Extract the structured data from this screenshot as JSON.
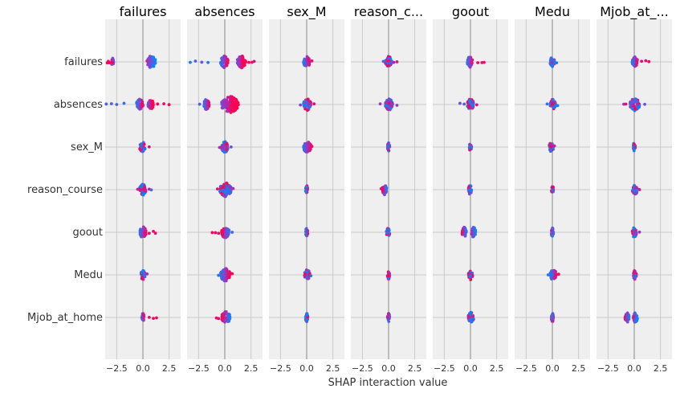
{
  "chart_data": {
    "type": "scatter",
    "subtype": "shap-interaction-summary (beeswarm matrix)",
    "title": "",
    "xlabel": "SHAP interaction value",
    "ylabel": "",
    "xlim": [
      -3.6,
      3.6
    ],
    "xticks": [
      -2.5,
      0.0,
      2.5
    ],
    "xtick_labels": [
      "−2.5",
      "0.0",
      "2.5"
    ],
    "grid": true,
    "features": [
      "failures",
      "absences",
      "sex_M",
      "reason_course",
      "goout",
      "Medu",
      "Mjob_at_home"
    ],
    "panel_titles": [
      "failures",
      "absences",
      "sex_M",
      "reason_c...",
      "goout",
      "Medu",
      "Mjob_at_..."
    ],
    "colors": {
      "low": "#008afb",
      "mid": "#8a3fd0",
      "high": "#ff0052",
      "panel_bg": "#efefef",
      "grid": "#c8c8c8",
      "zero_line": "#999999"
    },
    "cells": [
      [
        {
          "core": [
            -3.0,
            -2.8,
            0.4,
            1.2
          ],
          "outliers": [
            -3.4,
            -3.3,
            -3.2,
            -2.9,
            0.9,
            1.0
          ],
          "high": "left"
        },
        {
          "core": [
            -0.4,
            0.3,
            1.2,
            2.0
          ],
          "outliers": [
            -3.3,
            -2.8,
            -2.2,
            -1.6,
            1.8,
            2.0,
            2.3,
            2.6,
            2.8
          ],
          "high": "right"
        },
        {
          "core": [
            -0.3,
            0.3
          ],
          "outliers": [
            0.5
          ],
          "high": "right"
        },
        {
          "core": [
            -0.3,
            0.3
          ],
          "outliers": [
            -0.5,
            0.5,
            0.8
          ],
          "high": "mixed"
        },
        {
          "core": [
            -0.3,
            0.2
          ],
          "outliers": [
            0.7,
            1.1,
            1.3
          ],
          "high": "right"
        },
        {
          "core": [
            -0.2,
            0.2
          ],
          "outliers": [
            0.4
          ],
          "high": "mixed"
        },
        {
          "core": [
            -0.2,
            0.3
          ],
          "outliers": [
            0.7,
            1.1,
            1.4
          ],
          "high": "right"
        }
      ],
      [
        {
          "core": [
            -0.6,
            0.0,
            0.5,
            1.0
          ],
          "outliers": [
            -3.5,
            -3.0,
            -2.5,
            -1.8,
            1.4,
            2.0,
            2.5
          ],
          "high": "right"
        },
        {
          "core": [
            -2.0,
            -1.5,
            -0.3,
            1.3
          ],
          "outliers": [
            -2.4
          ],
          "high": "right"
        },
        {
          "core": [
            -0.3,
            0.4
          ],
          "outliers": [
            -0.6,
            0.7
          ],
          "high": "mixed"
        },
        {
          "core": [
            -0.3,
            0.4
          ],
          "outliers": [
            -0.8,
            0.8
          ],
          "high": "mixed"
        },
        {
          "core": [
            -0.3,
            0.3
          ],
          "outliers": [
            -1.0,
            -0.6,
            0.6
          ],
          "high": "mixed"
        },
        {
          "core": [
            -0.2,
            0.3
          ],
          "outliers": [
            -0.5,
            0.5
          ],
          "high": "mixed"
        },
        {
          "core": [
            -0.4,
            0.5
          ],
          "outliers": [
            -1.0,
            -0.8,
            1.0
          ],
          "high": "mixed"
        }
      ],
      [
        {
          "core": [
            -0.3,
            0.2
          ],
          "outliers": [
            0.6
          ],
          "high": "mixed"
        },
        {
          "core": [
            -0.3,
            0.3
          ],
          "outliers": [
            -0.5,
            0.6
          ],
          "high": "mixed"
        },
        {
          "core": [
            -0.3,
            0.4
          ],
          "outliers": [
            0.5
          ],
          "high": "right"
        },
        {
          "core": [
            -0.1,
            0.1
          ],
          "outliers": [],
          "high": "mixed"
        },
        {
          "core": [
            -0.1,
            0.1
          ],
          "outliers": [],
          "high": "mixed"
        },
        {
          "core": [
            -0.3,
            0.1
          ],
          "outliers": [
            0.2
          ],
          "high": "mixed"
        },
        {
          "core": [
            -0.1,
            0.1
          ],
          "outliers": [],
          "high": "mixed"
        }
      ],
      [
        {
          "core": [
            -0.3,
            0.3
          ],
          "outliers": [
            -0.5,
            0.6,
            0.8
          ],
          "high": "mixed"
        },
        {
          "core": [
            -0.5,
            0.6
          ],
          "outliers": [
            -0.7,
            0.8
          ],
          "high": "mixed"
        },
        {
          "core": [
            -0.1,
            0.1
          ],
          "outliers": [],
          "high": "mixed"
        },
        {
          "core": [
            -0.6,
            -0.2
          ],
          "outliers": [
            -0.7
          ],
          "high": "left"
        },
        {
          "core": [
            -0.2,
            0.1
          ],
          "outliers": [],
          "high": "mixed"
        },
        {
          "core": [
            -0.1,
            0.1
          ],
          "outliers": [],
          "high": "mixed"
        },
        {
          "core": [
            -0.2,
            0.3
          ],
          "outliers": [
            0.5
          ],
          "high": "mixed"
        }
      ],
      [
        {
          "core": [
            -0.3,
            0.3
          ],
          "outliers": [
            0.6,
            1.0,
            1.2
          ],
          "high": "right"
        },
        {
          "core": [
            -0.3,
            0.4
          ],
          "outliers": [
            -1.2,
            -0.9,
            -0.6,
            0.7
          ],
          "high": "left"
        },
        {
          "core": [
            -0.1,
            0.1
          ],
          "outliers": [],
          "high": "mixed"
        },
        {
          "core": [
            -0.2,
            0.1
          ],
          "outliers": [],
          "high": "mixed"
        },
        {
          "core": [
            -0.8,
            -0.4,
            0.1,
            0.5
          ],
          "outliers": [],
          "high": "left"
        },
        {
          "core": [
            -0.1,
            0.1
          ],
          "outliers": [],
          "high": "mixed"
        },
        {
          "core": [
            -0.2,
            0.2
          ],
          "outliers": [
            0.5
          ],
          "high": "mixed"
        }
      ],
      [
        {
          "core": [
            -0.2,
            0.2
          ],
          "outliers": [
            0.4
          ],
          "high": "mixed"
        },
        {
          "core": [
            -0.4,
            0.5
          ],
          "outliers": [
            -0.6,
            0.7
          ],
          "high": "right"
        },
        {
          "core": [
            -0.2,
            0.3
          ],
          "outliers": [
            0.4
          ],
          "high": "mixed"
        },
        {
          "core": [
            -0.1,
            0.1
          ],
          "outliers": [],
          "high": "mixed"
        },
        {
          "core": [
            -0.2,
            0.2
          ],
          "outliers": [],
          "high": "mixed"
        },
        {
          "core": [
            -0.2,
            0.4
          ],
          "outliers": [
            -0.4,
            0.6
          ],
          "high": "right"
        },
        {
          "core": [
            -0.1,
            0.2
          ],
          "outliers": [],
          "high": "mixed"
        }
      ],
      [
        {
          "core": [
            -0.1,
            0.1
          ],
          "outliers": [
            0.6,
            1.0,
            1.3
          ],
          "high": "right"
        },
        {
          "core": [
            -0.3,
            0.5
          ],
          "outliers": [
            -0.8,
            -0.6
          ],
          "high": "left"
        },
        {
          "core": [
            -0.1,
            0.1
          ],
          "outliers": [],
          "high": "mixed"
        },
        {
          "core": [
            -0.1,
            0.1
          ],
          "outliers": [],
          "high": "mixed"
        },
        {
          "core": [
            -0.2,
            0.3
          ],
          "outliers": [],
          "high": "mixed"
        },
        {
          "core": [
            -0.1,
            0.1
          ],
          "outliers": [],
          "high": "mixed"
        },
        {
          "core": [
            -0.9,
            -0.5,
            -0.1,
            0.3
          ],
          "outliers": [],
          "high": "left"
        }
      ]
    ]
  }
}
